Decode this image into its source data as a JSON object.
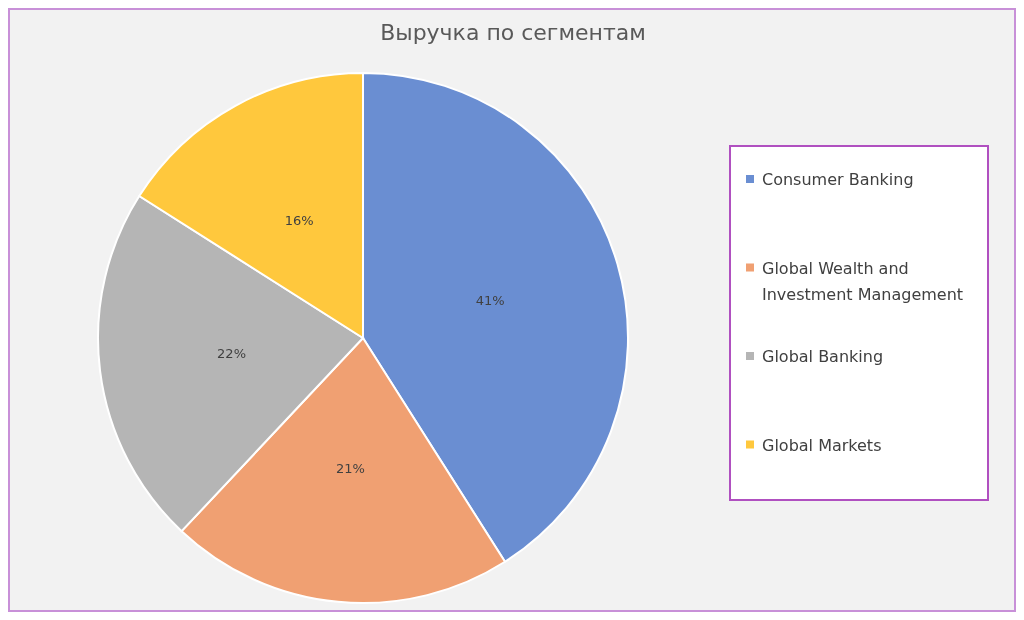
{
  "chart_data": {
    "type": "pie",
    "title": "Выручка по сегментам",
    "categories": [
      "Consumer Banking",
      "Global Wealth and Investment Management",
      "Global Banking",
      "Global Markets"
    ],
    "values": [
      41,
      21,
      22,
      16
    ],
    "colors": [
      "#6a8ed2",
      "#f0a072",
      "#b5b5b5",
      "#ffc83d"
    ],
    "value_labels": [
      "41%",
      "21%",
      "22%",
      "16%"
    ],
    "legend": "right"
  }
}
